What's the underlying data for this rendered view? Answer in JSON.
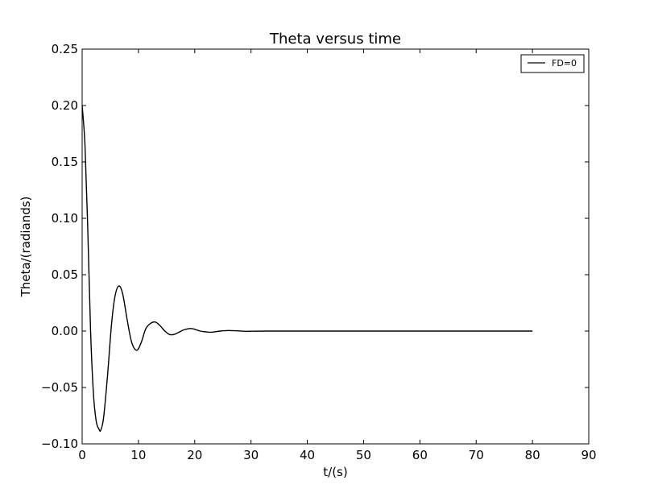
{
  "chart_data": {
    "type": "line",
    "title": "Theta versus time",
    "xlabel": "t/(s)",
    "ylabel": "Theta/(radiands)",
    "xlim": [
      0,
      90
    ],
    "ylim": [
      -0.1,
      0.25
    ],
    "xticks": [
      "0",
      "10",
      "20",
      "30",
      "40",
      "50",
      "60",
      "70",
      "80",
      "90"
    ],
    "yticks": [
      "−0.10",
      "−0.05",
      "0.00",
      "0.05",
      "0.10",
      "0.15",
      "0.20",
      "0.25"
    ],
    "grid": false,
    "legend_position": "top-right",
    "series": [
      {
        "name": "FD=0",
        "color": "#000000",
        "x": [
          0,
          0.5,
          1,
          1.5,
          2,
          2.5,
          3,
          3.3,
          3.8,
          4.5,
          5.2,
          5.8,
          6.5,
          7.2,
          8,
          8.8,
          9.7,
          10.5,
          11.3,
          12.2,
          13,
          13.8,
          14.7,
          15.5,
          16.3,
          17.2,
          18,
          19,
          19.7,
          21,
          22,
          23,
          24.5,
          26,
          27.5,
          29,
          30.5,
          32.5,
          35,
          40,
          50,
          60,
          70,
          80
        ],
        "y": [
          0.2,
          0.165,
          0.09,
          0.0,
          -0.055,
          -0.08,
          -0.087,
          -0.088,
          -0.077,
          -0.04,
          0.005,
          0.03,
          0.04,
          0.033,
          0.01,
          -0.01,
          -0.017,
          -0.01,
          0.002,
          0.007,
          0.008,
          0.005,
          0.0,
          -0.003,
          -0.003,
          -0.001,
          0.001,
          0.0022,
          0.002,
          0.0,
          -0.0007,
          -0.001,
          0.0,
          0.0005,
          0.0002,
          -0.0002,
          -0.0001,
          0.0,
          0.0,
          0.0,
          0.0,
          0.0,
          0.0,
          0.0
        ]
      }
    ]
  }
}
